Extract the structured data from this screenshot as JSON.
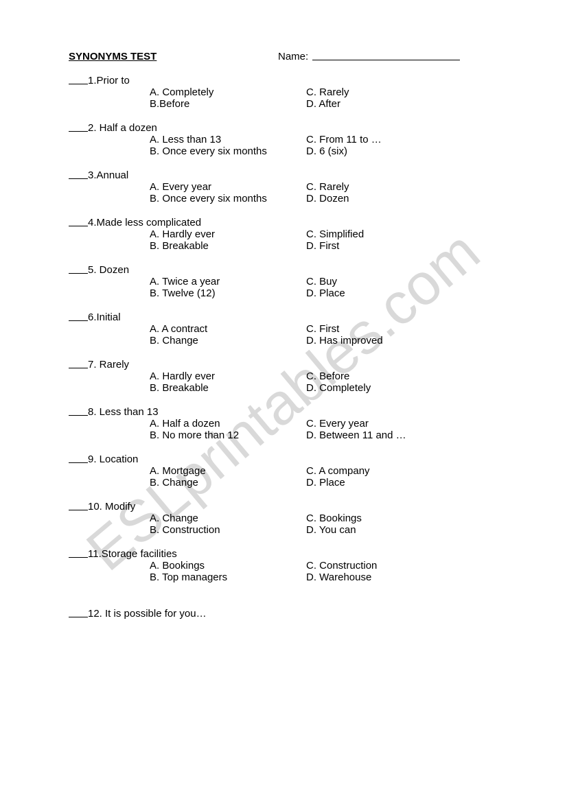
{
  "title": "SYNONYMS TEST",
  "name_label": "Name:",
  "watermark": "ESLprintables.com",
  "questions": [
    {
      "num": "1",
      "text": ".Prior to",
      "a": "A. Completely",
      "b": "B.Before",
      "c": "C. Rarely",
      "d": "D. After"
    },
    {
      "num": "2",
      "text": ". Half a dozen",
      "a": "A. Less than 13",
      "b": "B. Once every six months",
      "c": "C. From 11 to …",
      "d": "D. 6 (six)"
    },
    {
      "num": "3",
      "text": ".Annual",
      "a": "A. Every year",
      "b": "B. Once every six months",
      "c": "C. Rarely",
      "d": "D. Dozen"
    },
    {
      "num": "4",
      "text": ".Made less complicated",
      "a": "A. Hardly ever",
      "b": "B. Breakable",
      "c": "C. Simplified",
      "d": "D. First"
    },
    {
      "num": "5",
      "text": ". Dozen",
      "a": "A. Twice a year",
      "b": "B. Twelve (12)",
      "c": "C. Buy",
      "d": "D. Place"
    },
    {
      "num": "6",
      "text": ".Initial",
      "a": "A. A contract",
      "b": "B. Change",
      "c": "C. First",
      "d": "D. Has improved"
    },
    {
      "num": "7",
      "text": ". Rarely",
      "a": "A. Hardly ever",
      "b": "B. Breakable",
      "c": "C. Before",
      "d": "D. Completely"
    },
    {
      "num": "8",
      "text": ". Less than 13",
      "a": "A. Half a dozen",
      "b": "B. No more than 12",
      "c": "C. Every year",
      "d": "D. Between 11 and …"
    },
    {
      "num": "9",
      "text": ". Location",
      "a": "A. Mortgage",
      "b": "B. Change",
      "c": "C. A company",
      "d": "D. Place"
    },
    {
      "num": "10",
      "text": ". Modify",
      "a": "A. Change",
      "b": "B. Construction",
      "c": "C. Bookings",
      "d": "D. You can"
    },
    {
      "num": "11",
      "text": ".Storage facilities",
      "a": "A. Bookings",
      "b": "B. Top managers",
      "c": "C. Construction",
      "d": "D. Warehouse"
    },
    {
      "num": "12",
      "text": ". It is possible for you…",
      "a": "",
      "b": "",
      "c": "",
      "d": ""
    }
  ]
}
